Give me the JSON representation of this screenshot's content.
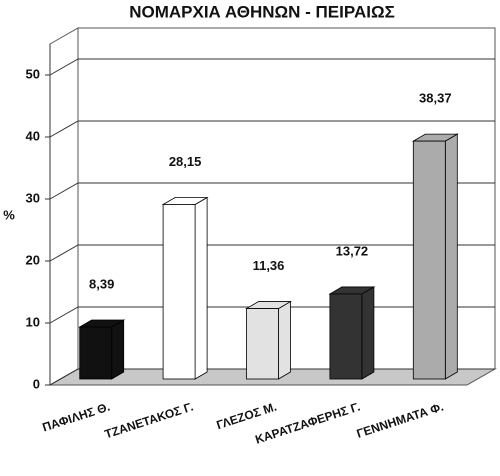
{
  "chart_data": {
    "type": "bar3d",
    "title": "ΝΟΜΑΡΧΙΑ ΑΘΗΝΩΝ - ΠΕΙΡΑΙΩΣ",
    "y_label": "%",
    "categories": [
      "ΠΑΦΙΛΗΣ Θ.",
      "ΤΖΑΝΕΤΑΚΟΣ Γ.",
      "ΓΛΕΖΟΣ Μ.",
      "ΚΑΡΑΤΖΑΦΕΡΗΣ Γ.",
      "ΓΕΝΝΗΜΑΤΑ Φ."
    ],
    "values": [
      8.39,
      28.15,
      11.36,
      13.72,
      38.37
    ],
    "value_labels": [
      "8,39",
      "28,15",
      "11,36",
      "13,72",
      "38,37"
    ],
    "colors": [
      "#111111",
      "#ffffff",
      "#e2e2e2",
      "#333333",
      "#ababab"
    ],
    "ylim": [
      0,
      55
    ],
    "yticks": [
      0,
      10,
      20,
      30,
      40,
      50
    ],
    "grid": true
  }
}
